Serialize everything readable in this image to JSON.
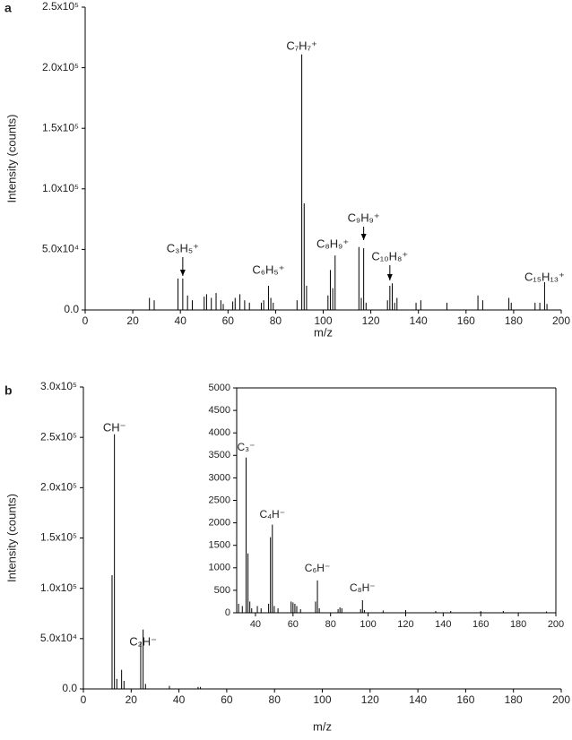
{
  "chart_data": [
    {
      "type": "bar",
      "label": "a",
      "xlabel": "m/z",
      "ylabel": "Intensity (counts)",
      "color": "#000000",
      "x": [
        27,
        29,
        39,
        41,
        43,
        45,
        50,
        51,
        53,
        55,
        57,
        58,
        62,
        63,
        65,
        67,
        69,
        74,
        75,
        77,
        78,
        79,
        89,
        91,
        92,
        93,
        102,
        103,
        104,
        105,
        115,
        116,
        117,
        118,
        127,
        128,
        129,
        130,
        131,
        139,
        141,
        152,
        165,
        167,
        178,
        179,
        189,
        191,
        193,
        194
      ],
      "values": [
        10000,
        8000,
        26000,
        26000,
        12000,
        8000,
        11000,
        13000,
        10000,
        14000,
        8000,
        5000,
        7000,
        10000,
        13000,
        8000,
        6000,
        6000,
        8000,
        20000,
        10000,
        6000,
        8000,
        211000,
        88000,
        20000,
        12000,
        33000,
        18000,
        45000,
        52000,
        10000,
        51000,
        6000,
        8000,
        20000,
        22000,
        6000,
        10000,
        6000,
        8000,
        6000,
        12000,
        8000,
        10000,
        6000,
        6000,
        6000,
        23000,
        5000
      ],
      "xlim": [
        0,
        200
      ],
      "xticks": [
        0,
        20,
        40,
        60,
        80,
        100,
        120,
        140,
        160,
        180,
        200
      ],
      "ylim": [
        0,
        250000
      ],
      "yticks": [
        {
          "value": 0,
          "label": "0.0"
        },
        {
          "value": 50000,
          "label": "5.0x10⁴"
        },
        {
          "value": 100000,
          "label": "1.0x10⁵"
        },
        {
          "value": 150000,
          "label": "1.5x10⁵"
        },
        {
          "value": 200000,
          "label": "2.0x10⁵"
        },
        {
          "value": 250000,
          "label": "2.5x10⁵"
        }
      ],
      "annotations": [
        "C₃H₅⁺",
        "C₆H₅⁺",
        "C₇H₇⁺",
        "C₈H₉⁺",
        "C₉H₉⁺",
        "C₁₀H₈⁺",
        "C₁₅H₁₃⁺"
      ]
    },
    {
      "type": "bar",
      "label": "b",
      "xlabel": "m/z",
      "ylabel": "Intensity (counts)",
      "color": "#000000",
      "x": [
        12,
        13,
        14,
        16,
        17,
        24,
        25,
        26,
        36,
        48,
        49
      ],
      "values": [
        113000,
        253000,
        10000,
        19000,
        8000,
        47000,
        59000,
        5000,
        3000,
        2000,
        2000
      ],
      "xlim": [
        0,
        200
      ],
      "xticks": [
        0,
        20,
        40,
        60,
        80,
        100,
        120,
        140,
        160,
        180,
        200
      ],
      "ylim": [
        0,
        300000
      ],
      "yticks": [
        {
          "value": 0,
          "label": "0.0"
        },
        {
          "value": 50000,
          "label": "5.0x10⁴"
        },
        {
          "value": 100000,
          "label": "1.0x10⁵"
        },
        {
          "value": 150000,
          "label": "1.5x10⁵"
        },
        {
          "value": 200000,
          "label": "2.0x10⁵"
        },
        {
          "value": 250000,
          "label": "2.5x10⁵"
        },
        {
          "value": 300000,
          "label": "3.0x10⁵"
        }
      ],
      "annotations": [
        "CH⁻",
        "C₂H⁻"
      ]
    },
    {
      "type": "bar",
      "color": "#000000",
      "x": [
        31,
        33,
        35,
        36,
        37,
        38,
        41,
        43,
        47,
        48,
        49,
        50,
        52,
        59,
        60,
        61,
        62,
        64,
        72,
        73,
        74,
        84,
        85,
        86,
        96,
        97,
        98,
        108,
        120,
        136,
        144,
        160,
        172,
        195
      ],
      "values": [
        200,
        150,
        3450,
        1320,
        250,
        100,
        150,
        100,
        200,
        1680,
        1960,
        150,
        100,
        250,
        230,
        200,
        150,
        80,
        250,
        720,
        100,
        80,
        120,
        100,
        80,
        280,
        60,
        50,
        60,
        40,
        40,
        40,
        40,
        30
      ],
      "xlim": [
        30,
        200
      ],
      "xticks": [
        40,
        60,
        80,
        100,
        120,
        140,
        160,
        180,
        200
      ],
      "ylim": [
        0,
        5000
      ],
      "yticks": [
        0,
        500,
        1000,
        1500,
        2000,
        2500,
        3000,
        3500,
        4000,
        4500,
        5000
      ],
      "annotations": [
        "C₃⁻",
        "C₄H⁻",
        "C₆H⁻",
        "C₈H⁻"
      ]
    }
  ]
}
